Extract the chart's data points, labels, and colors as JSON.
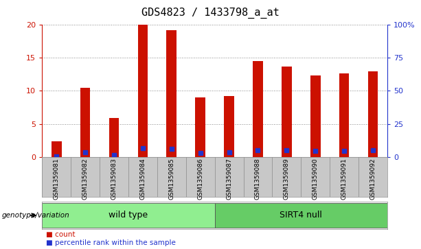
{
  "title": "GDS4823 / 1433798_a_at",
  "samples": [
    "GSM1359081",
    "GSM1359082",
    "GSM1359083",
    "GSM1359084",
    "GSM1359085",
    "GSM1359086",
    "GSM1359087",
    "GSM1359088",
    "GSM1359089",
    "GSM1359090",
    "GSM1359091",
    "GSM1359092"
  ],
  "counts": [
    2.4,
    10.5,
    5.9,
    20.0,
    19.2,
    9.0,
    9.2,
    14.5,
    13.7,
    12.3,
    12.7,
    13.0
  ],
  "percentile_ranks": [
    0.4,
    3.6,
    1.5,
    6.5,
    6.2,
    2.7,
    3.3,
    5.2,
    5.0,
    4.6,
    4.6,
    5.0
  ],
  "bar_color": "#CC1100",
  "marker_color": "#2233CC",
  "groups": [
    {
      "label": "wild type",
      "start": 0,
      "end": 6,
      "color": "#90EE90"
    },
    {
      "label": "SIRT4 null",
      "start": 6,
      "end": 12,
      "color": "#66CC66"
    }
  ],
  "group_label": "genotype/variation",
  "ylim_left": [
    0,
    20
  ],
  "ylim_right": [
    0,
    100
  ],
  "yticks_left": [
    0,
    5,
    10,
    15,
    20
  ],
  "yticks_right": [
    0,
    25,
    50,
    75,
    100
  ],
  "yticklabels_right": [
    "0",
    "25",
    "50",
    "75",
    "100%"
  ],
  "legend_count_label": "count",
  "legend_pct_label": "percentile rank within the sample",
  "bar_width": 0.35,
  "left_tick_color": "#CC1100",
  "right_tick_color": "#2233CC",
  "bg_color_plot": "#ffffff",
  "bg_color_sample": "#C8C8C8",
  "bg_color_figure": "#ffffff",
  "title_fontsize": 11,
  "tick_fontsize": 8,
  "group_fontsize": 9,
  "sample_fontsize": 6.5,
  "legend_fontsize": 7.5
}
